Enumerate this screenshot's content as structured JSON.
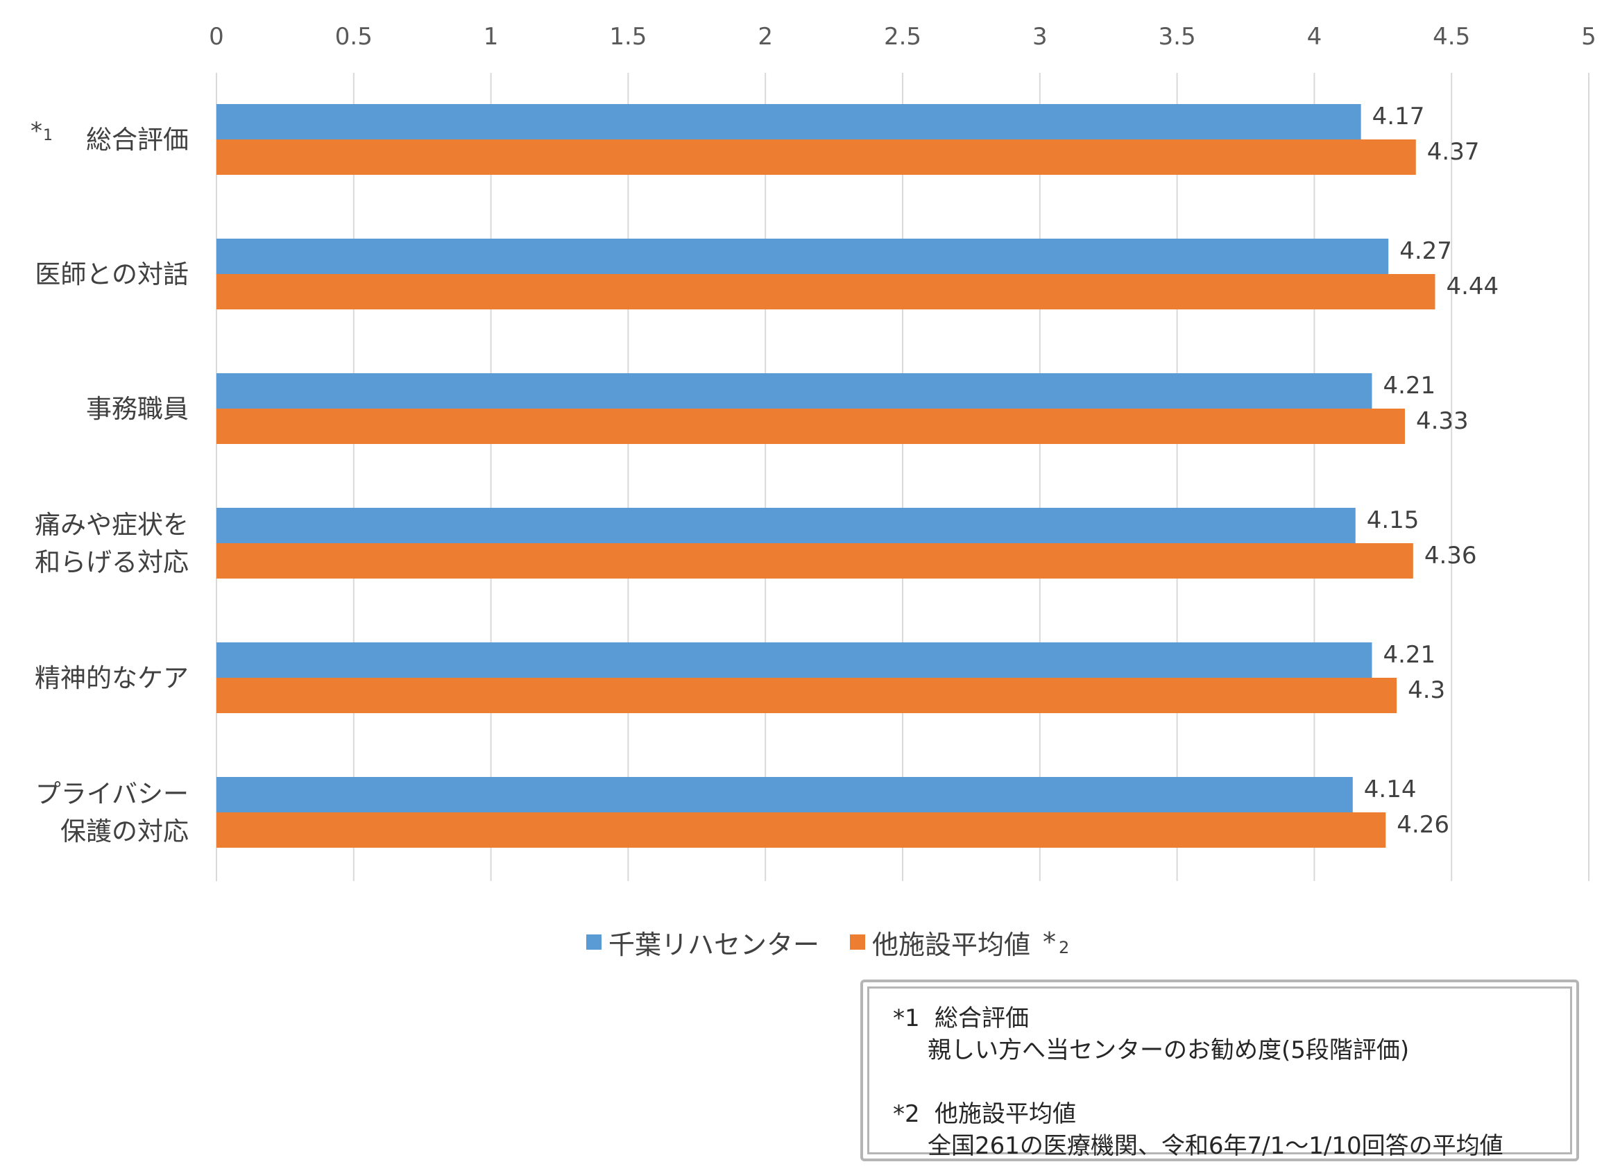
{
  "chart_data": {
    "type": "bar",
    "orientation": "horizontal",
    "categories": [
      [
        "*1",
        "総合評価"
      ],
      [
        "医師との対話"
      ],
      [
        "事務職員"
      ],
      [
        "痛みや症状を",
        "和らげる対応"
      ],
      [
        "精神的なケア"
      ],
      [
        "プライバシー",
        "保護の対応"
      ]
    ],
    "series": [
      {
        "name": "千葉リハセンター",
        "color": "#5b9bd5",
        "values": [
          4.17,
          4.27,
          4.21,
          4.15,
          4.21,
          4.14
        ],
        "labels": [
          "4.17",
          "4.27",
          "4.21",
          "4.15",
          "4.21",
          "4.14"
        ]
      },
      {
        "name": "他施設平均値",
        "color": "#ed7d31",
        "values": [
          4.37,
          4.44,
          4.33,
          4.36,
          4.3,
          4.26
        ],
        "labels": [
          "4.37",
          "4.44",
          "4.33",
          "4.36",
          "4.3",
          "4.26"
        ]
      }
    ],
    "xlim": [
      0,
      5
    ],
    "ticks": [
      "0",
      "0.5",
      "1",
      "1.5",
      "2",
      "2.5",
      "3",
      "3.5",
      "4",
      "4.5",
      "5"
    ],
    "tick_values": [
      0,
      0.5,
      1,
      1.5,
      2,
      2.5,
      3,
      3.5,
      4,
      4.5,
      5
    ],
    "axis_position": "top",
    "grid": true,
    "legend_position": "bottom"
  },
  "legend": {
    "item1": "千葉リハセンター",
    "item2": "他施設平均値",
    "item2_mark": "*",
    "item2_sup": "2"
  },
  "notes": {
    "note1_mark": "*1",
    "note1_title": "総合評価",
    "note1_body": "親しい方へ当センターのお勧め度(5段階評価)",
    "note2_mark": "*2",
    "note2_title": "他施設平均値",
    "note2_body": "全国261の医療機関、令和6年7/1～1/10回答の平均値"
  },
  "colors": {
    "series1": "#5b9bd5",
    "series2": "#ed7d31",
    "grid": "#d9d9d9"
  }
}
